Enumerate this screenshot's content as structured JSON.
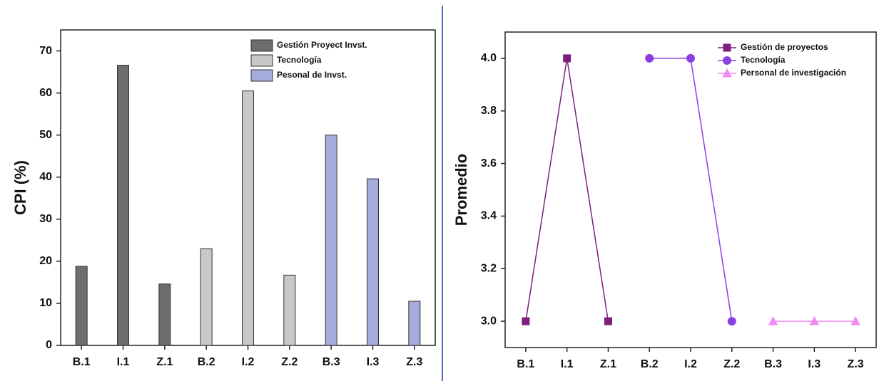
{
  "chart_data": [
    {
      "type": "bar",
      "ylabel": "CPI (%)",
      "categories": [
        "B.1",
        "I.1",
        "Z.1",
        "B.2",
        "I.2",
        "Z.2",
        "B.3",
        "I.3",
        "Z.3"
      ],
      "series": [
        {
          "name": "Gestión Proyect Invst.",
          "color": "#6e6e6e",
          "values": [
            18.8,
            66.6,
            14.6,
            null,
            null,
            null,
            null,
            null,
            null
          ]
        },
        {
          "name": "Tecnología",
          "color": "#c8c8c8",
          "values": [
            null,
            null,
            null,
            23,
            60.5,
            16.7,
            null,
            null,
            null
          ]
        },
        {
          "name": "Pesonal de Invst.",
          "color": "#a4acdc",
          "values": [
            null,
            null,
            null,
            null,
            null,
            null,
            50,
            39.6,
            10.5
          ]
        }
      ],
      "ylim": [
        0,
        75
      ],
      "yticks": [
        0,
        10,
        20,
        30,
        40,
        50,
        60,
        70
      ],
      "legend": "upper right"
    },
    {
      "type": "line",
      "ylabel": "Promedio",
      "categories": [
        "B.1",
        "I.1",
        "Z.1",
        "B.2",
        "I.2",
        "Z.2",
        "B.3",
        "I.3",
        "Z.3"
      ],
      "series": [
        {
          "name": "Gestión de proyectos",
          "color": "#7d1f80",
          "marker": "square",
          "values": [
            3,
            4,
            3,
            null,
            null,
            null,
            null,
            null,
            null
          ]
        },
        {
          "name": "Tecnología",
          "color": "#8a3fe0",
          "marker": "circle",
          "values": [
            null,
            null,
            null,
            4,
            4,
            3,
            null,
            null,
            null
          ]
        },
        {
          "name": "Personal de investigación",
          "color": "#f08cf0",
          "marker": "triangle",
          "values": [
            null,
            null,
            null,
            null,
            null,
            null,
            3,
            3,
            3
          ]
        }
      ],
      "ylim": [
        2.9,
        4.1
      ],
      "yticks": [
        {
          "value": 3,
          "label": "3.0"
        },
        {
          "value": 3.2,
          "label": "3.2"
        },
        {
          "value": 3.4,
          "label": "3.4"
        },
        {
          "value": 3.6,
          "label": "3.6"
        },
        {
          "value": 3.8,
          "label": "3.8"
        },
        {
          "value": 4,
          "label": "4.0"
        }
      ],
      "legend": "upper right"
    }
  ]
}
